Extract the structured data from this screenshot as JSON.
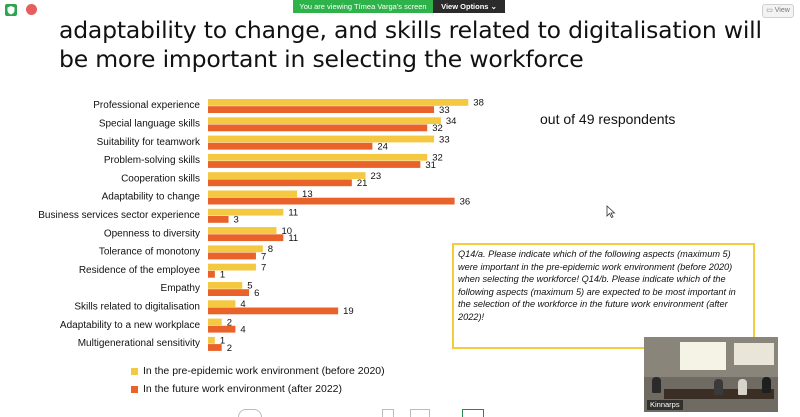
{
  "zoom_bar": {
    "viewing_text": "You are viewing Tímea Varga's screen",
    "view_options_label": "View Options",
    "view_button_label": "View"
  },
  "slide": {
    "title": "adaptability to change, and skills related to digitalisation will be more important in selecting the workforce",
    "respondents_note": "out of 49 respondents",
    "question_text": "Q14/a. Please indicate which of the following aspects (maximum 5) were important in the pre-epidemic work environment (before 2020) when selecting the workforce! Q14/b. Please indicate which of the following aspects (maximum 5) are expected to be most important in the selection of the workforce in the future work environment (after 2022)!"
  },
  "chart_data": {
    "type": "bar",
    "orientation": "horizontal",
    "categories": [
      "Professional experience",
      "Special language skills",
      "Suitability for teamwork",
      "Problem-solving skills",
      "Cooperation skills",
      "Adaptability to change",
      "Business services sector experience",
      "Openness to diversity",
      "Tolerance of monotony",
      "Residence of the employee",
      "Empathy",
      "Skills related to digitalisation",
      "Adaptability to a new workplace",
      "Multigenerational sensitivity"
    ],
    "series": [
      {
        "name": "In the pre-epidemic work environment (before 2020)",
        "color": "#f5c842",
        "values": [
          38,
          34,
          33,
          32,
          23,
          13,
          11,
          10,
          8,
          7,
          5,
          4,
          2,
          1
        ]
      },
      {
        "name": "In the future work environment (after 2022)",
        "color": "#e8622a",
        "values": [
          33,
          32,
          24,
          31,
          21,
          36,
          3,
          11,
          7,
          1,
          6,
          19,
          4,
          2
        ]
      }
    ],
    "data_labels": true,
    "legend_position": "bottom-left"
  },
  "video": {
    "participant_name": "Kinnarps"
  },
  "colors": {
    "zoom_green": "#2eb34a",
    "series_yellow": "#f5c842",
    "series_orange": "#e8622a",
    "box_border": "#f2cc3c"
  },
  "icons": [
    "shield-icon",
    "record-icon",
    "chevron-down-icon",
    "view-icon",
    "cursor-icon"
  ]
}
